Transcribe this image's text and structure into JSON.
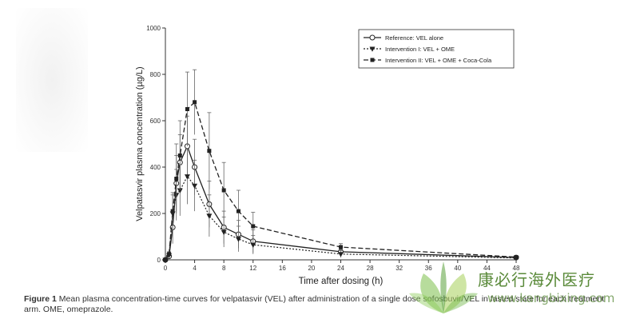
{
  "chart_data": {
    "type": "line",
    "xlabel": "Time after dosing (h)",
    "ylabel": "Velpatasvir plasma concentration (µg/L)",
    "xlim": [
      0,
      48
    ],
    "ylim": [
      0,
      1000
    ],
    "xticks": [
      0,
      4,
      8,
      12,
      16,
      20,
      24,
      28,
      32,
      36,
      40,
      44,
      48
    ],
    "yticks": [
      0,
      200,
      400,
      600,
      800,
      1000
    ],
    "legend_position": "top-right",
    "x": [
      0,
      0.5,
      1,
      1.5,
      2,
      3,
      4,
      6,
      8,
      10,
      12,
      24,
      48
    ],
    "series": [
      {
        "name": "Reference: VEL alone",
        "marker": "circle-open",
        "line": "solid",
        "values": [
          0,
          15,
          140,
          330,
          420,
          490,
          400,
          240,
          140,
          110,
          80,
          35,
          10
        ],
        "error": [
          0,
          10,
          70,
          120,
          120,
          130,
          120,
          100,
          70,
          60,
          50,
          15,
          5
        ]
      },
      {
        "name": "Intervention I: VEL + OME",
        "marker": "triangle-down",
        "line": "dotted",
        "values": [
          0,
          20,
          200,
          280,
          300,
          360,
          320,
          190,
          120,
          90,
          65,
          25,
          8
        ],
        "error": [
          0,
          10,
          80,
          110,
          110,
          120,
          110,
          90,
          65,
          55,
          40,
          15,
          5
        ]
      },
      {
        "name": "Intervention II: VEL + OME + Coca-Cola",
        "marker": "square-filled",
        "line": "dashed",
        "values": [
          0,
          25,
          210,
          350,
          450,
          650,
          680,
          470,
          300,
          210,
          145,
          55,
          12
        ],
        "error": [
          0,
          10,
          80,
          150,
          150,
          160,
          140,
          165,
          120,
          90,
          60,
          15,
          5
        ]
      }
    ]
  },
  "caption": {
    "figure_label": "Figure 1",
    "text": "Mean plasma concentration-time curves for velpatasvir (VEL) after administration of a single dose sofosbuvir/VEL in fasted state for each treatment arm. OME, omeprazole."
  },
  "watermark": {
    "name_cn": "康必行海外医疗",
    "url": "www.kangbixing.com"
  }
}
